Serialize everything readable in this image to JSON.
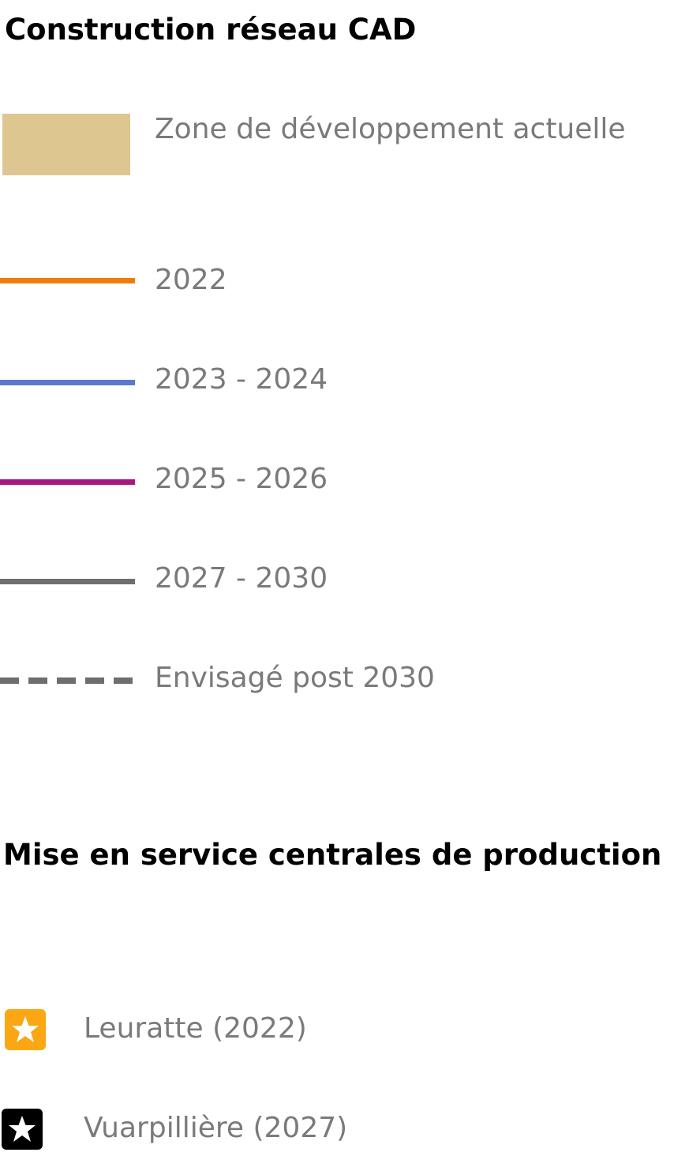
{
  "network": {
    "title": "Construction réseau CAD",
    "items": [
      {
        "label": "Zone de développement actuelle"
      },
      {
        "label": "2022"
      },
      {
        "label": "2023 - 2024"
      },
      {
        "label": "2025 - 2026"
      },
      {
        "label": "2027 - 2030"
      },
      {
        "label": "Envisagé post 2030"
      }
    ]
  },
  "plants": {
    "title": "Mise en service centrales de production",
    "items": [
      {
        "label": "Leuratte (2022)"
      },
      {
        "label": "Vuarpillière (2027)"
      }
    ]
  }
}
